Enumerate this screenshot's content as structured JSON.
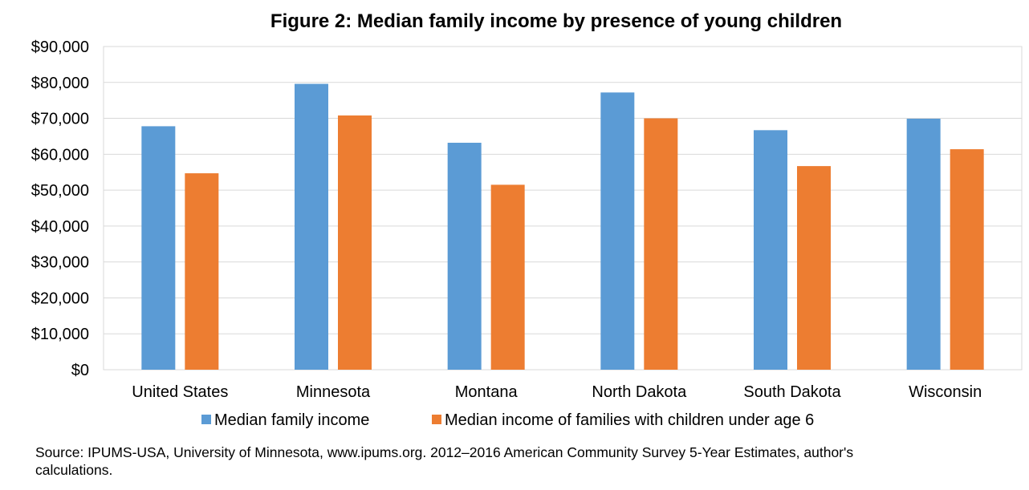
{
  "chart_data": {
    "type": "bar",
    "title": "Figure 2: Median family income by presence of young children",
    "categories": [
      "United States",
      "Minnesota",
      "Montana",
      "North Dakota",
      "South Dakota",
      "Wisconsin"
    ],
    "series": [
      {
        "name": "Median family income",
        "color": "#5B9BD5",
        "values": [
          67800,
          79600,
          63200,
          77200,
          66700,
          69900
        ]
      },
      {
        "name": "Median income of families with children under age 6",
        "color": "#ED7D31",
        "values": [
          54700,
          70800,
          51500,
          70000,
          56700,
          61400
        ]
      }
    ],
    "ylim": [
      0,
      90000
    ],
    "yticks": [
      "$0",
      "$10,000",
      "$20,000",
      "$30,000",
      "$40,000",
      "$50,000",
      "$60,000",
      "$70,000",
      "$80,000",
      "$90,000"
    ],
    "grid": true,
    "legend_position": "bottom"
  },
  "source_note": "Source: IPUMS-USA, University of Minnesota, www.ipums.org. 2012–2016 American Community Survey 5-Year Estimates, author's calculations."
}
